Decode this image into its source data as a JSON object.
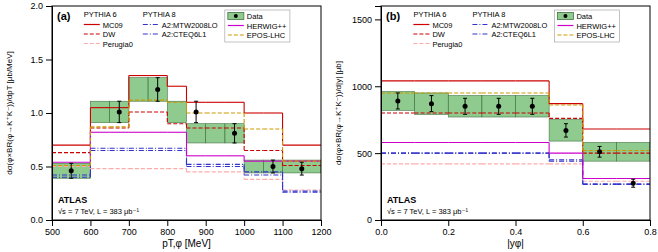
{
  "chart_data": [
    {
      "type": "step",
      "title": "(a)",
      "x_label": "pT,φ [MeV]",
      "y_label": "dσ(φ×BR(φ→K⁺K⁻))/dpT [μb/MeV]",
      "annotations": [
        "PYTHIA 6",
        "PYTHIA 8",
        "ATLAS",
        "√s = 7 TeV, L = 383 μb⁻¹"
      ],
      "xlim": [
        500,
        1200
      ],
      "xticks": [
        500,
        600,
        700,
        800,
        900,
        1000,
        1100,
        1200
      ],
      "ylim": [
        0,
        2.0
      ],
      "yticks": [
        {
          "value": 0,
          "label": "0.0"
        },
        0.5,
        {
          "value": 1.0,
          "label": "1.0"
        },
        1.5,
        {
          "value": 2.0,
          "label": "2.0"
        }
      ],
      "grid": false,
      "legend": "top",
      "bins": [
        500,
        600,
        650,
        700,
        750,
        800,
        850,
        900,
        950,
        1000,
        1050,
        1100,
        1200
      ],
      "series": [
        {
          "name": "MC09",
          "type": "step",
          "color": "#cc0000",
          "line_style": "solid",
          "values": [
            0.7,
            1.05,
            1.05,
            1.35,
            1.35,
            1.25,
            1.1,
            1.1,
            1.1,
            1.0,
            1.0,
            0.7
          ]
        },
        {
          "name": "DW",
          "type": "step",
          "color": "#cc0000",
          "line_style": "dashed",
          "values": [
            0.63,
            0.86,
            0.86,
            1.01,
            1.01,
            0.9,
            0.86,
            0.86,
            0.86,
            0.65,
            0.65,
            0.51
          ]
        },
        {
          "name": "Perugia0",
          "type": "step",
          "color": "#ffaaaa",
          "line_style": "dashed",
          "values": [
            0.5,
            0.48,
            0.48,
            0.48,
            0.48,
            0.48,
            0.45,
            0.45,
            0.45,
            0.38,
            0.38,
            0.28
          ]
        },
        {
          "name": "A2:MTW2008LO",
          "type": "step",
          "color": "#3333cc",
          "line_style": "dashdot",
          "values": [
            0.42,
            0.67,
            0.67,
            0.67,
            0.67,
            0.67,
            0.52,
            0.52,
            0.52,
            0.45,
            0.45,
            0.27
          ]
        },
        {
          "name": "A2:CTEQ6L1",
          "type": "step",
          "color": "#3333cc",
          "line_style": "dashdot",
          "values": [
            0.4,
            0.65,
            0.65,
            0.65,
            0.65,
            0.65,
            0.5,
            0.5,
            0.5,
            0.42,
            0.42,
            0.26
          ]
        },
        {
          "name": "HERWIG++",
          "type": "step",
          "color": "#cc00cc",
          "line_style": "solid",
          "values": [
            0.54,
            0.82,
            0.82,
            0.82,
            0.82,
            0.82,
            0.6,
            0.6,
            0.6,
            0.55,
            0.55,
            0.55
          ]
        },
        {
          "name": "EPOS-LHC",
          "type": "step",
          "color": "#cc9900",
          "line_style": "dashed",
          "values": [
            0.51,
            0.87,
            0.87,
            1.12,
            1.12,
            1.1,
            1.0,
            1.0,
            1.0,
            0.85,
            0.85,
            0.55
          ]
        },
        {
          "name": "Data",
          "type": "errorbar",
          "color": "#000000",
          "marker": "circle",
          "x": [
            550,
            675,
            775,
            875,
            975,
            1075,
            1150
          ],
          "values": [
            0.46,
            1.01,
            1.22,
            1.01,
            0.81,
            0.5,
            0.48
          ],
          "errors": [
            0.07,
            0.1,
            0.11,
            0.1,
            0.09,
            0.06,
            0.06
          ],
          "band": {
            "color": "#6ab86a",
            "low": [
              0.39,
              0.91,
              0.91,
              1.11,
              1.11,
              0.91,
              0.72,
              0.72,
              0.72,
              0.44,
              0.44,
              0.44
            ],
            "high": [
              0.53,
              1.11,
              1.11,
              1.33,
              1.33,
              1.11,
              0.9,
              0.9,
              0.9,
              0.56,
              0.56,
              0.56
            ]
          }
        }
      ]
    },
    {
      "type": "step",
      "title": "(b)",
      "x_label": "|yφ|",
      "y_label": "dσ(φ×BR(φ→K⁺K⁻))/d|y| [μb]",
      "annotations": [
        "PYTHIA 6",
        "PYTHIA 8",
        "ATLAS",
        "√s = 7 TeV, L = 383 μb⁻¹"
      ],
      "xlim": [
        0,
        0.8
      ],
      "xticks": [
        {
          "value": 0,
          "label": "0.0"
        },
        0.2,
        0.4,
        0.6,
        0.8
      ],
      "ylim": [
        0,
        1600
      ],
      "yticks": [
        0,
        500,
        1000,
        1500
      ],
      "grid": false,
      "legend": "top",
      "bins": [
        0.0,
        0.1,
        0.2,
        0.3,
        0.4,
        0.5,
        0.6,
        0.7,
        0.8
      ],
      "series": [
        {
          "name": "MC09",
          "type": "step",
          "color": "#cc0000",
          "line_style": "solid",
          "values": [
            1040,
            1040,
            1040,
            1040,
            1040,
            870,
            680,
            680
          ]
        },
        {
          "name": "DW",
          "type": "step",
          "color": "#cc0000",
          "line_style": "dashed",
          "values": [
            800,
            800,
            800,
            800,
            800,
            760,
            500,
            500
          ]
        },
        {
          "name": "Perugia0",
          "type": "step",
          "color": "#ffaaaa",
          "line_style": "dashed",
          "values": [
            420,
            420,
            420,
            420,
            420,
            420,
            290,
            290
          ]
        },
        {
          "name": "A2:MTW2008LO",
          "type": "step",
          "color": "#3333cc",
          "line_style": "dashdot",
          "values": [
            500,
            500,
            500,
            500,
            500,
            450,
            270,
            270
          ]
        },
        {
          "name": "A2:CTEQ6L1",
          "type": "step",
          "color": "#3333cc",
          "line_style": "dashdot",
          "values": [
            500,
            500,
            500,
            500,
            500,
            440,
            265,
            265
          ]
        },
        {
          "name": "HERWIG++",
          "type": "step",
          "color": "#cc00cc",
          "line_style": "solid",
          "values": [
            580,
            580,
            580,
            580,
            580,
            500,
            310,
            310
          ]
        },
        {
          "name": "EPOS-LHC",
          "type": "step",
          "color": "#cc9900",
          "line_style": "dashed",
          "values": [
            950,
            950,
            950,
            950,
            950,
            860,
            520,
            520
          ]
        },
        {
          "name": "Data",
          "type": "errorbar",
          "color": "#000000",
          "marker": "circle",
          "x": [
            0.05,
            0.15,
            0.25,
            0.35,
            0.45,
            0.55,
            0.65,
            0.75
          ],
          "values": [
            890,
            870,
            850,
            850,
            850,
            670,
            510,
            275
          ],
          "errors": [
            60,
            60,
            60,
            60,
            60,
            50,
            40,
            30
          ],
          "band": {
            "color": "#6ab86a",
            "low": [
              820,
              790,
              770,
              770,
              770,
              590,
              440,
              440
            ],
            "high": [
              960,
              950,
              930,
              930,
              930,
              750,
              580,
              580
            ]
          }
        }
      ]
    }
  ]
}
